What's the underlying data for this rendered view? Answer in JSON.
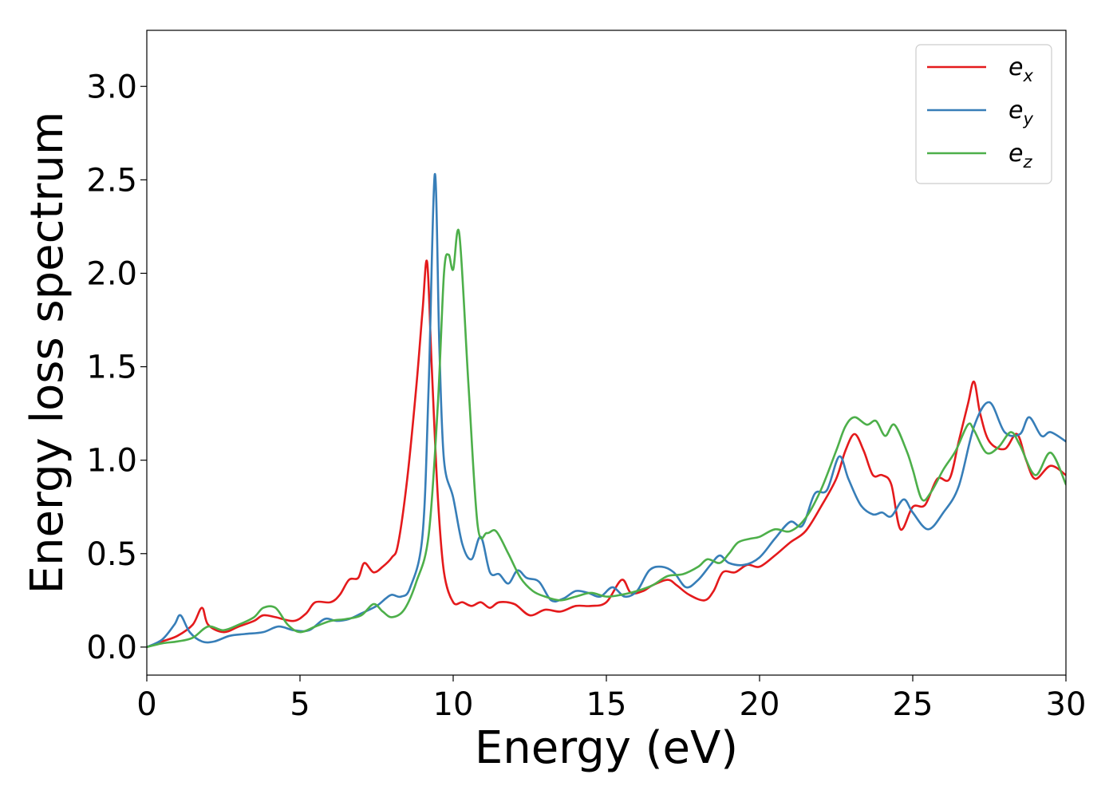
{
  "chart_data": {
    "type": "line",
    "xlabel": "Energy (eV)",
    "ylabel": "Energy loss spectrum",
    "xlim": [
      0,
      30
    ],
    "ylim": [
      -0.15,
      3.3
    ],
    "x_ticks": [
      "0",
      "5",
      "10",
      "15",
      "20",
      "25",
      "30"
    ],
    "y_ticks": [
      "0.0",
      "0.5",
      "1.0",
      "1.5",
      "2.0",
      "2.5",
      "3.0"
    ],
    "grid": false,
    "legend_position": "top-right",
    "series": [
      {
        "name": "e_x",
        "label_main": "e",
        "label_sub": "x",
        "color": "#e41a1c",
        "points": [
          [
            0,
            0
          ],
          [
            0.5,
            0.03
          ],
          [
            1.0,
            0.06
          ],
          [
            1.5,
            0.12
          ],
          [
            1.8,
            0.21
          ],
          [
            2.0,
            0.12
          ],
          [
            2.5,
            0.08
          ],
          [
            3.0,
            0.11
          ],
          [
            3.5,
            0.14
          ],
          [
            3.8,
            0.17
          ],
          [
            4.2,
            0.16
          ],
          [
            4.8,
            0.14
          ],
          [
            5.2,
            0.18
          ],
          [
            5.5,
            0.24
          ],
          [
            6.0,
            0.24
          ],
          [
            6.3,
            0.28
          ],
          [
            6.6,
            0.36
          ],
          [
            6.9,
            0.37
          ],
          [
            7.1,
            0.45
          ],
          [
            7.4,
            0.4
          ],
          [
            7.7,
            0.43
          ],
          [
            8.0,
            0.48
          ],
          [
            8.2,
            0.55
          ],
          [
            8.5,
            0.9
          ],
          [
            8.8,
            1.4
          ],
          [
            9.0,
            1.8
          ],
          [
            9.15,
            2.06
          ],
          [
            9.3,
            1.5
          ],
          [
            9.5,
            0.8
          ],
          [
            9.7,
            0.4
          ],
          [
            10.0,
            0.24
          ],
          [
            10.3,
            0.24
          ],
          [
            10.6,
            0.22
          ],
          [
            10.9,
            0.24
          ],
          [
            11.2,
            0.21
          ],
          [
            11.5,
            0.24
          ],
          [
            12.0,
            0.23
          ],
          [
            12.5,
            0.17
          ],
          [
            13.0,
            0.2
          ],
          [
            13.5,
            0.19
          ],
          [
            14.0,
            0.22
          ],
          [
            14.5,
            0.22
          ],
          [
            15.0,
            0.24
          ],
          [
            15.5,
            0.36
          ],
          [
            15.8,
            0.29
          ],
          [
            16.2,
            0.3
          ],
          [
            16.5,
            0.33
          ],
          [
            17.0,
            0.36
          ],
          [
            17.3,
            0.33
          ],
          [
            17.7,
            0.28
          ],
          [
            18.2,
            0.25
          ],
          [
            18.5,
            0.3
          ],
          [
            18.8,
            0.4
          ],
          [
            19.2,
            0.4
          ],
          [
            19.6,
            0.44
          ],
          [
            20.0,
            0.43
          ],
          [
            20.5,
            0.49
          ],
          [
            21.0,
            0.56
          ],
          [
            21.5,
            0.62
          ],
          [
            22.0,
            0.75
          ],
          [
            22.5,
            0.9
          ],
          [
            22.8,
            1.05
          ],
          [
            23.1,
            1.14
          ],
          [
            23.4,
            1.05
          ],
          [
            23.7,
            0.92
          ],
          [
            24.0,
            0.92
          ],
          [
            24.3,
            0.87
          ],
          [
            24.6,
            0.63
          ],
          [
            25.0,
            0.75
          ],
          [
            25.4,
            0.76
          ],
          [
            25.8,
            0.9
          ],
          [
            26.2,
            0.9
          ],
          [
            26.5,
            1.1
          ],
          [
            26.8,
            1.3
          ],
          [
            27.0,
            1.42
          ],
          [
            27.2,
            1.25
          ],
          [
            27.5,
            1.1
          ],
          [
            28.0,
            1.06
          ],
          [
            28.4,
            1.14
          ],
          [
            28.7,
            1.0
          ],
          [
            29.0,
            0.9
          ],
          [
            29.5,
            0.97
          ],
          [
            30.0,
            0.92
          ]
        ]
      },
      {
        "name": "e_y",
        "label_main": "e",
        "label_sub": "y",
        "color": "#377eb8",
        "points": [
          [
            0,
            0
          ],
          [
            0.5,
            0.04
          ],
          [
            0.9,
            0.12
          ],
          [
            1.1,
            0.17
          ],
          [
            1.4,
            0.08
          ],
          [
            1.8,
            0.03
          ],
          [
            2.2,
            0.03
          ],
          [
            2.7,
            0.06
          ],
          [
            3.2,
            0.07
          ],
          [
            3.8,
            0.08
          ],
          [
            4.3,
            0.11
          ],
          [
            4.8,
            0.09
          ],
          [
            5.3,
            0.09
          ],
          [
            5.8,
            0.15
          ],
          [
            6.2,
            0.14
          ],
          [
            6.6,
            0.15
          ],
          [
            7.0,
            0.18
          ],
          [
            7.5,
            0.22
          ],
          [
            7.8,
            0.26
          ],
          [
            8.0,
            0.28
          ],
          [
            8.3,
            0.27
          ],
          [
            8.6,
            0.32
          ],
          [
            9.0,
            0.6
          ],
          [
            9.2,
            1.4
          ],
          [
            9.4,
            2.53
          ],
          [
            9.55,
            1.6
          ],
          [
            9.7,
            1.0
          ],
          [
            10.0,
            0.8
          ],
          [
            10.3,
            0.55
          ],
          [
            10.6,
            0.47
          ],
          [
            10.9,
            0.59
          ],
          [
            11.2,
            0.4
          ],
          [
            11.5,
            0.39
          ],
          [
            11.8,
            0.34
          ],
          [
            12.1,
            0.41
          ],
          [
            12.4,
            0.37
          ],
          [
            12.8,
            0.35
          ],
          [
            13.2,
            0.25
          ],
          [
            13.6,
            0.26
          ],
          [
            14.0,
            0.3
          ],
          [
            14.4,
            0.29
          ],
          [
            14.8,
            0.27
          ],
          [
            15.2,
            0.32
          ],
          [
            15.6,
            0.27
          ],
          [
            16.0,
            0.3
          ],
          [
            16.4,
            0.41
          ],
          [
            16.8,
            0.43
          ],
          [
            17.2,
            0.4
          ],
          [
            17.6,
            0.32
          ],
          [
            18.0,
            0.36
          ],
          [
            18.4,
            0.44
          ],
          [
            18.7,
            0.49
          ],
          [
            19.0,
            0.45
          ],
          [
            19.5,
            0.44
          ],
          [
            20.0,
            0.48
          ],
          [
            20.5,
            0.58
          ],
          [
            21.0,
            0.67
          ],
          [
            21.4,
            0.65
          ],
          [
            21.8,
            0.82
          ],
          [
            22.2,
            0.84
          ],
          [
            22.6,
            1.02
          ],
          [
            22.9,
            0.9
          ],
          [
            23.3,
            0.76
          ],
          [
            23.7,
            0.71
          ],
          [
            24.0,
            0.72
          ],
          [
            24.3,
            0.7
          ],
          [
            24.7,
            0.79
          ],
          [
            25.0,
            0.72
          ],
          [
            25.5,
            0.63
          ],
          [
            26.0,
            0.72
          ],
          [
            26.5,
            0.86
          ],
          [
            27.0,
            1.18
          ],
          [
            27.5,
            1.31
          ],
          [
            28.0,
            1.15
          ],
          [
            28.5,
            1.14
          ],
          [
            28.8,
            1.23
          ],
          [
            29.2,
            1.13
          ],
          [
            29.5,
            1.15
          ],
          [
            30.0,
            1.1
          ]
        ]
      },
      {
        "name": "e_z",
        "label_main": "e",
        "label_sub": "z",
        "color": "#4daf4a",
        "points": [
          [
            0,
            0
          ],
          [
            0.5,
            0.02
          ],
          [
            1.0,
            0.03
          ],
          [
            1.5,
            0.05
          ],
          [
            2.0,
            0.11
          ],
          [
            2.5,
            0.09
          ],
          [
            3.0,
            0.12
          ],
          [
            3.5,
            0.16
          ],
          [
            3.8,
            0.21
          ],
          [
            4.2,
            0.21
          ],
          [
            4.6,
            0.12
          ],
          [
            5.0,
            0.08
          ],
          [
            5.5,
            0.11
          ],
          [
            6.0,
            0.14
          ],
          [
            6.5,
            0.15
          ],
          [
            7.0,
            0.17
          ],
          [
            7.4,
            0.23
          ],
          [
            7.7,
            0.19
          ],
          [
            8.0,
            0.16
          ],
          [
            8.4,
            0.2
          ],
          [
            8.8,
            0.35
          ],
          [
            9.2,
            0.6
          ],
          [
            9.5,
            1.3
          ],
          [
            9.7,
            2.0
          ],
          [
            9.85,
            2.1
          ],
          [
            10.0,
            2.02
          ],
          [
            10.2,
            2.21
          ],
          [
            10.5,
            1.4
          ],
          [
            10.8,
            0.65
          ],
          [
            11.1,
            0.61
          ],
          [
            11.4,
            0.62
          ],
          [
            11.8,
            0.5
          ],
          [
            12.2,
            0.37
          ],
          [
            12.6,
            0.3
          ],
          [
            13.0,
            0.27
          ],
          [
            13.5,
            0.25
          ],
          [
            14.0,
            0.27
          ],
          [
            14.5,
            0.29
          ],
          [
            15.0,
            0.27
          ],
          [
            15.5,
            0.28
          ],
          [
            16.0,
            0.3
          ],
          [
            16.5,
            0.33
          ],
          [
            17.0,
            0.38
          ],
          [
            17.5,
            0.39
          ],
          [
            18.0,
            0.43
          ],
          [
            18.3,
            0.47
          ],
          [
            18.7,
            0.45
          ],
          [
            19.0,
            0.5
          ],
          [
            19.3,
            0.56
          ],
          [
            19.7,
            0.58
          ],
          [
            20.0,
            0.59
          ],
          [
            20.5,
            0.63
          ],
          [
            21.0,
            0.62
          ],
          [
            21.5,
            0.69
          ],
          [
            22.0,
            0.84
          ],
          [
            22.5,
            1.05
          ],
          [
            22.8,
            1.18
          ],
          [
            23.1,
            1.23
          ],
          [
            23.5,
            1.19
          ],
          [
            23.8,
            1.21
          ],
          [
            24.1,
            1.13
          ],
          [
            24.4,
            1.19
          ],
          [
            24.8,
            1.05
          ],
          [
            25.0,
            0.95
          ],
          [
            25.3,
            0.79
          ],
          [
            25.6,
            0.83
          ],
          [
            26.0,
            0.95
          ],
          [
            26.4,
            1.05
          ],
          [
            26.8,
            1.19
          ],
          [
            27.0,
            1.16
          ],
          [
            27.4,
            1.04
          ],
          [
            27.8,
            1.07
          ],
          [
            28.2,
            1.15
          ],
          [
            28.5,
            1.08
          ],
          [
            29.0,
            0.92
          ],
          [
            29.5,
            1.04
          ],
          [
            30.0,
            0.87
          ]
        ]
      }
    ]
  }
}
